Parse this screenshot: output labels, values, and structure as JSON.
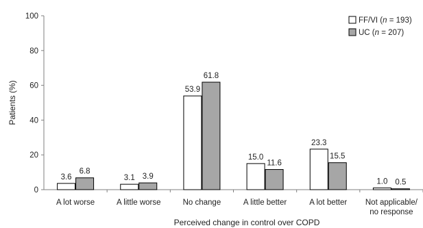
{
  "chart_data": {
    "type": "bar",
    "xlabel": "Perceived change in control over COPD",
    "ylabel": "Patients (%)",
    "ylim": [
      0,
      100
    ],
    "yticks": [
      0,
      20,
      40,
      60,
      80,
      100
    ],
    "grid": false,
    "legend_position": "top-right",
    "categories": [
      [
        "A lot worse"
      ],
      [
        "A little worse"
      ],
      [
        "No change"
      ],
      [
        "A little better"
      ],
      [
        "A lot better"
      ],
      [
        "Not applicable/",
        "no response"
      ]
    ],
    "series": [
      {
        "name_prefix": "FF/VI (",
        "name_n": "n",
        "name_suffix": " = 193)",
        "color": "#ffffff",
        "values": [
          3.6,
          3.1,
          53.9,
          15.0,
          23.3,
          1.0
        ],
        "labels": [
          "3.6",
          "3.1",
          "53.9",
          "15.0",
          "23.3",
          "1.0"
        ]
      },
      {
        "name_prefix": "UC (",
        "name_n": "n",
        "name_suffix": " = 207)",
        "color": "#a6a6a6",
        "values": [
          6.8,
          3.9,
          61.8,
          11.6,
          15.5,
          0.5
        ],
        "labels": [
          "6.8",
          "3.9",
          "61.8",
          "11.6",
          "15.5",
          "0.5"
        ]
      }
    ]
  }
}
